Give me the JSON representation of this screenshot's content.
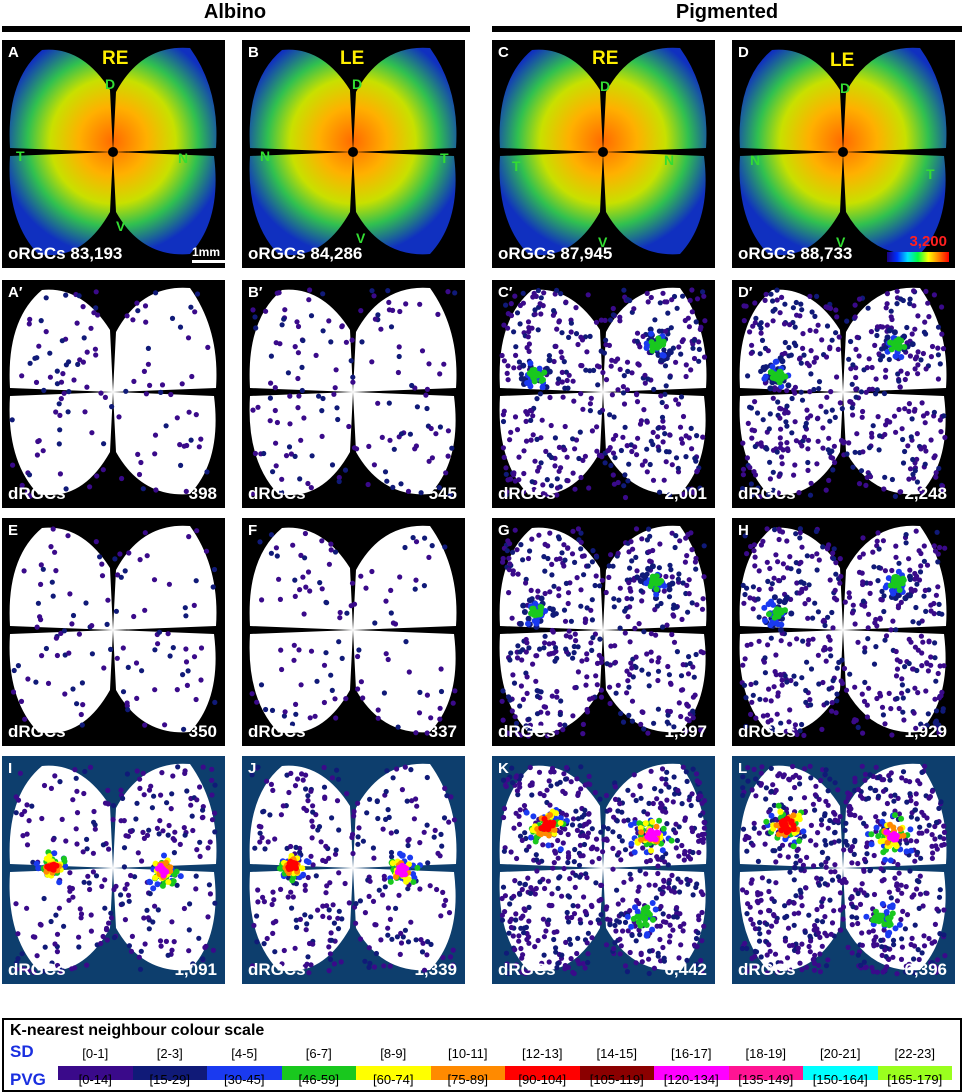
{
  "groups": [
    {
      "title": "Albino"
    },
    {
      "title": "Pigmented"
    }
  ],
  "eyes": {
    "re": "RE",
    "le": "LE"
  },
  "orient": {
    "d": "D",
    "v": "V",
    "t": "T",
    "n": "N"
  },
  "scale": {
    "bar_label": "1mm",
    "color_max": "3,200"
  },
  "panels": {
    "A": {
      "label": "A",
      "count_label": "oRGCs",
      "count": "83,193"
    },
    "B": {
      "label": "B",
      "count_label": "oRGCs",
      "count": "84,286"
    },
    "C": {
      "label": "C",
      "count_label": "oRGCs",
      "count": "87,945"
    },
    "D": {
      "label": "D",
      "count_label": "oRGCs",
      "count": "88,733"
    },
    "A2": {
      "label": "A′",
      "count_label": "dRGCs",
      "count": "398"
    },
    "B2": {
      "label": "B′",
      "count_label": "dRGCs",
      "count": "545"
    },
    "C2": {
      "label": "C′",
      "count_label": "dRGCs",
      "count": "2,001"
    },
    "D2": {
      "label": "D′",
      "count_label": "dRGCs",
      "count": "2,248"
    },
    "E": {
      "label": "E",
      "count_label": "dRGCs",
      "count": "350"
    },
    "F": {
      "label": "F",
      "count_label": "dRGCs",
      "count": "337"
    },
    "G": {
      "label": "G",
      "count_label": "dRGCs",
      "count": "1,997"
    },
    "H": {
      "label": "H",
      "count_label": "dRGCs",
      "count": "1,929"
    },
    "I": {
      "label": "I",
      "count_label": "dRGCs",
      "count": "1,091"
    },
    "J": {
      "label": "J",
      "count_label": "dRGCs",
      "count": "1,339"
    },
    "K": {
      "label": "K",
      "count_label": "dRGCs",
      "count": "6,442"
    },
    "L": {
      "label": "L",
      "count_label": "dRGCs",
      "count": "6,396"
    }
  },
  "legend": {
    "title": "K-nearest neighbour colour  scale",
    "sd_label": "SD",
    "pvg_label": "PVG",
    "colors": [
      "#3a0a8a",
      "#101a78",
      "#1a3af0",
      "#19c81e",
      "#ffff00",
      "#ff8a00",
      "#ff0000",
      "#8b0000",
      "#ff00ff",
      "#ff1493",
      "#00ffff",
      "#9aff1e"
    ],
    "sd": [
      "[0-1]",
      "[2-3]",
      "[4-5]",
      "[6-7]",
      "[8-9]",
      "[10-11]",
      "[12-13]",
      "[14-15]",
      "[16-17]",
      "[18-19]",
      "[20-21]",
      "[22-23]"
    ],
    "pvg": [
      "[0-14]",
      "[15-29]",
      "[30-45]",
      "[46-59]",
      "[60-74]",
      "[75-89]",
      "[90-104]",
      "[105-119]",
      "[120-134]",
      "[135-149]",
      "[150-164]",
      "[165-179]"
    ]
  }
}
